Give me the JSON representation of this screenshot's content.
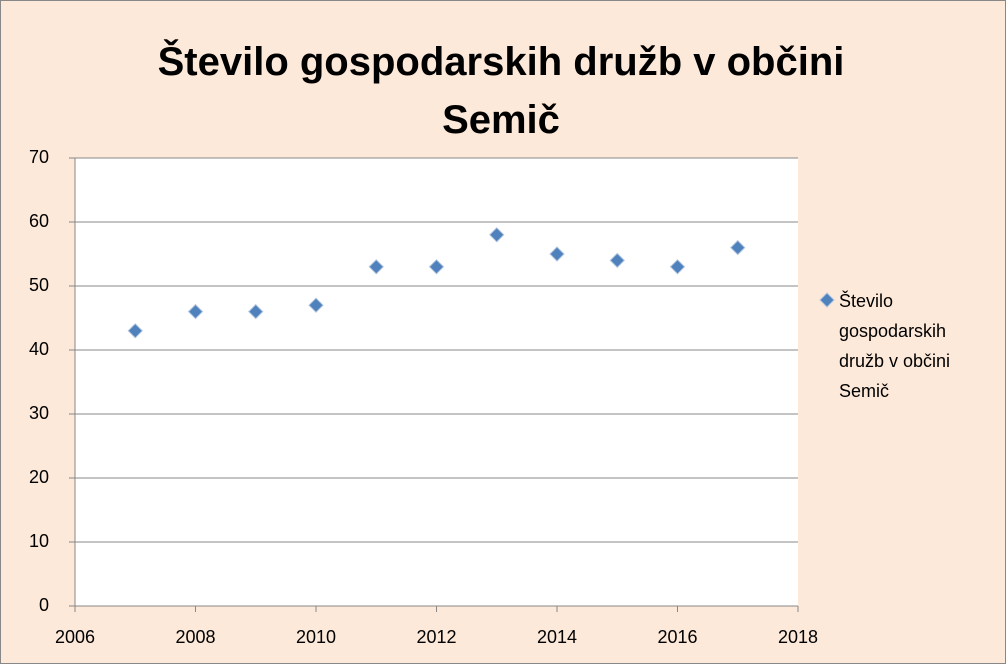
{
  "chart_data": {
    "type": "scatter",
    "title": "Število gospodarskih družb v občini Semič",
    "series": [
      {
        "name": "Število gospodarskih družb v občini Semič",
        "color": "#4f81bd",
        "x": [
          2007,
          2008,
          2009,
          2010,
          2011,
          2012,
          2013,
          2014,
          2015,
          2016,
          2017
        ],
        "values": [
          43,
          46,
          46,
          47,
          53,
          53,
          58,
          55,
          54,
          53,
          56
        ]
      }
    ],
    "xlim": [
      2006,
      2018
    ],
    "xticks": [
      2006,
      2008,
      2010,
      2012,
      2014,
      2016,
      2018
    ],
    "ylim": [
      0,
      70
    ],
    "yticks": [
      0,
      10,
      20,
      30,
      40,
      50,
      60,
      70
    ],
    "grid": true,
    "legend": "right"
  }
}
